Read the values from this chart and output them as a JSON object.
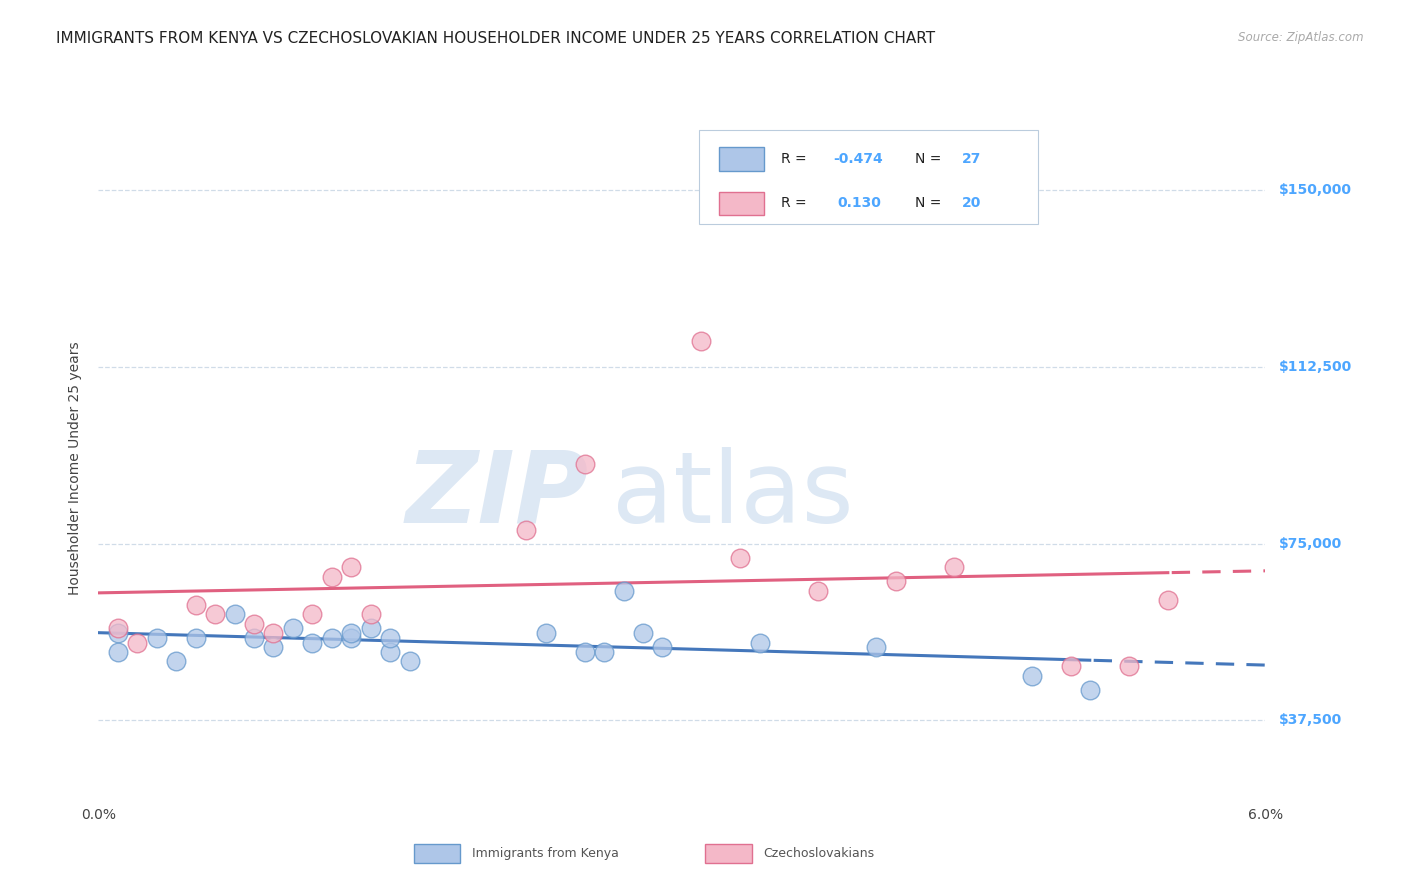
{
  "title": "IMMIGRANTS FROM KENYA VS CZECHOSLOVAKIAN HOUSEHOLDER INCOME UNDER 25 YEARS CORRELATION CHART",
  "source": "Source: ZipAtlas.com",
  "ylabel": "Householder Income Under 25 years",
  "xlim": [
    0.0,
    0.06
  ],
  "ylim": [
    20000,
    162000
  ],
  "yticks": [
    37500,
    75000,
    112500,
    150000
  ],
  "ytick_labels": [
    "$37,500",
    "$75,000",
    "$112,500",
    "$150,000"
  ],
  "xticks": [
    0.0,
    0.01,
    0.02,
    0.03,
    0.04,
    0.05,
    0.06
  ],
  "xtick_labels": [
    "0.0%",
    "",
    "",
    "",
    "",
    "",
    "6.0%"
  ],
  "kenya_R": "-0.474",
  "kenya_N": "27",
  "czech_R": "0.130",
  "czech_N": "20",
  "kenya_color": "#aec6e8",
  "czech_color": "#f4b8c8",
  "kenya_edge_color": "#6699cc",
  "czech_edge_color": "#e07090",
  "kenya_line_color": "#4477bb",
  "czech_line_color": "#e06080",
  "label_color": "#4da6ff",
  "R_color": "#4da6ff",
  "N_color": "#4da6ff",
  "kenya_x": [
    0.001,
    0.001,
    0.003,
    0.004,
    0.005,
    0.007,
    0.008,
    0.009,
    0.01,
    0.011,
    0.012,
    0.013,
    0.013,
    0.014,
    0.015,
    0.015,
    0.016,
    0.023,
    0.025,
    0.026,
    0.027,
    0.028,
    0.029,
    0.034,
    0.04,
    0.048,
    0.051
  ],
  "kenya_y": [
    56000,
    52000,
    55000,
    50000,
    55000,
    60000,
    55000,
    53000,
    57000,
    54000,
    55000,
    55000,
    56000,
    57000,
    52000,
    55000,
    50000,
    56000,
    52000,
    52000,
    65000,
    56000,
    53000,
    54000,
    53000,
    47000,
    44000
  ],
  "czech_x": [
    0.001,
    0.002,
    0.005,
    0.006,
    0.008,
    0.009,
    0.011,
    0.012,
    0.013,
    0.014,
    0.022,
    0.025,
    0.031,
    0.033,
    0.037,
    0.041,
    0.044,
    0.05,
    0.053,
    0.055
  ],
  "czech_y": [
    57000,
    54000,
    62000,
    60000,
    58000,
    56000,
    60000,
    68000,
    70000,
    60000,
    78000,
    92000,
    118000,
    72000,
    65000,
    67000,
    70000,
    49000,
    49000,
    63000
  ],
  "kenya_trend_split": 0.051,
  "czech_trend_split": 0.055,
  "background_color": "#ffffff",
  "grid_color": "#d0dce8",
  "title_fontsize": 11,
  "axis_fontsize": 9,
  "legend_fontsize": 10,
  "watermark_color": "#dde8f4"
}
